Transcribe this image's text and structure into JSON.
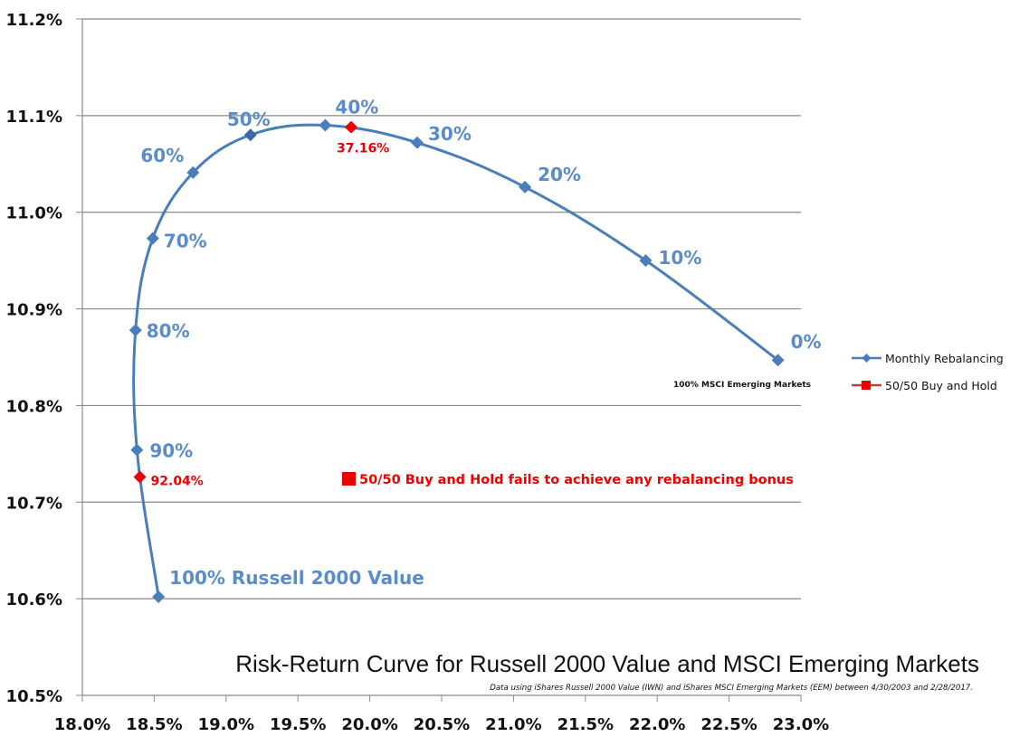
{
  "chart_data": {
    "type": "line",
    "title": "Risk-Return Curve for Russell 2000 Value and MSCI Emerging Markets",
    "subtitle": "Data using iShares Russell 2000 Value (IWN) and iShares MSCI Emerging Markets (EEM) between 4/30/2003 and 2/28/2017.",
    "xlabel": "",
    "ylabel": "",
    "xlim": [
      18.0,
      23.0
    ],
    "ylim": [
      10.5,
      11.2
    ],
    "x_ticks": [
      "18.0%",
      "18.5%",
      "19.0%",
      "19.5%",
      "20.0%",
      "20.5%",
      "21.0%",
      "21.5%",
      "22.0%",
      "22.5%",
      "23.0%"
    ],
    "x_tick_values": [
      18.0,
      18.5,
      19.0,
      19.5,
      20.0,
      20.5,
      21.0,
      21.5,
      22.0,
      22.5,
      23.0
    ],
    "y_ticks": [
      "10.5%",
      "10.6%",
      "10.7%",
      "10.8%",
      "10.9%",
      "11.0%",
      "11.1%",
      "11.2%"
    ],
    "y_tick_values": [
      10.5,
      10.6,
      10.7,
      10.8,
      10.9,
      11.0,
      11.1,
      11.2
    ],
    "grid": "horizontal",
    "legend_position": "right",
    "series": [
      {
        "name": "Monthly Rebalancing",
        "color": "#4a7ebb",
        "marker": "diamond",
        "points": [
          {
            "label": "100% Russell 2000 Value",
            "x": 18.53,
            "y": 10.602
          },
          {
            "label": "90%",
            "x": 18.38,
            "y": 10.754
          },
          {
            "label": "80%",
            "x": 18.37,
            "y": 10.878
          },
          {
            "label": "70%",
            "x": 18.49,
            "y": 10.973
          },
          {
            "label": "60%",
            "x": 18.77,
            "y": 11.041
          },
          {
            "label": "50%",
            "x": 19.17,
            "y": 11.08
          },
          {
            "label": "40%",
            "x": 19.69,
            "y": 11.09
          },
          {
            "label": "30%",
            "x": 20.33,
            "y": 11.072
          },
          {
            "label": "20%",
            "x": 21.08,
            "y": 11.026
          },
          {
            "label": "10%",
            "x": 21.92,
            "y": 10.95
          },
          {
            "label": "0%",
            "x": 22.84,
            "y": 10.847
          }
        ]
      },
      {
        "name": "50/50 Buy and Hold",
        "color": "#ee0000",
        "marker": "diamond",
        "points": [
          {
            "label": "92.04%",
            "x": 18.4,
            "y": 10.726
          },
          {
            "label": "37.16%",
            "x": 19.87,
            "y": 11.088
          }
        ]
      }
    ],
    "annotations": {
      "endpoint_note": "100% MSCI Emerging Markets",
      "callout": "50/50 Buy and Hold fails to achieve any rebalancing bonus"
    }
  },
  "colors": {
    "series_blue": "#4a7ebb",
    "label_blue": "#5a8ccc",
    "red": "#ee0000",
    "grid": "#888888"
  }
}
